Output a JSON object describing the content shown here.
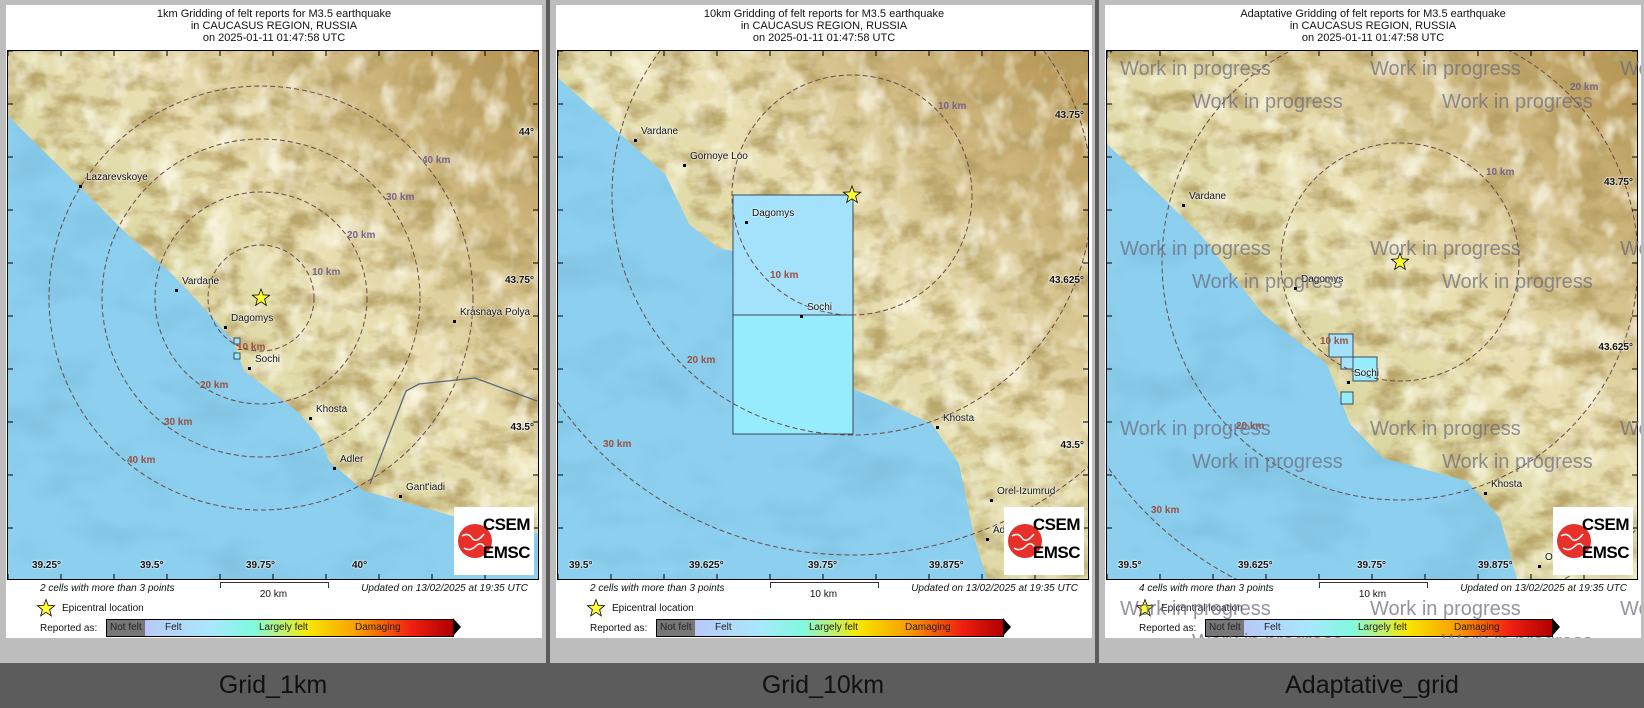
{
  "panels": [
    {
      "title_lines": [
        "1km Gridding of felt reports for M3.5 earthquake",
        "in CAUCASUS REGION, RUSSIA",
        "on  2025-01-11 01:47:58 UTC"
      ],
      "caption": "Grid_1km",
      "cells_note": "2 cells with more than 3 points",
      "scale_label": "20 km",
      "updated": "Updated on 13/02/2025 at 19:35 UTC",
      "towns": [
        "Lazarevskoye",
        "Vardane",
        "Dagomys",
        "Sochi",
        "Khosta",
        "Krasnaya Polya",
        "Adler",
        "Gant'iadi"
      ],
      "ring_labels": [
        "10 km",
        "20 km",
        "30 km",
        "40 km",
        "10 km",
        "20 km",
        "30 km",
        "40 km"
      ],
      "lon_ticks": [
        "39.25°",
        "39.5°",
        "39.75°",
        "40°"
      ],
      "lat_ticks": [
        "44°",
        "43.75°",
        "43.5°"
      ],
      "watermark": ""
    },
    {
      "title_lines": [
        "10km Gridding of felt reports for M3.5 earthquake",
        "in CAUCASUS REGION, RUSSIA",
        "on  2025-01-11 01:47:58 UTC"
      ],
      "caption": "Grid_10km",
      "cells_note": "2 cells with more than 3 points",
      "scale_label": "10 km",
      "updated": "Updated on 13/02/2025 at 19:35 UTC",
      "towns": [
        "Vardane",
        "Gornoye Loo",
        "Dagomys",
        "Sochi",
        "Khosta",
        "Orel-Izumrud",
        "Adler"
      ],
      "ring_labels": [
        "10 km",
        "10 km",
        "20 km",
        "30 km"
      ],
      "lon_ticks": [
        "39.5°",
        "39.625°",
        "39.75°",
        "39.875°"
      ],
      "lat_ticks": [
        "43.75°",
        "43.625°",
        "43.5°"
      ],
      "watermark": ""
    },
    {
      "title_lines": [
        "Adaptative Gridding of felt reports for M3.5 earthquake",
        "in CAUCASUS REGION, RUSSIA",
        "on  2025-01-11 01:47:58 UTC"
      ],
      "caption": "Adaptative_grid",
      "cells_note": "4 cells with more than 3 points",
      "scale_label": "10 km",
      "updated": "Updated on 13/02/2025 at 19:35 UTC",
      "towns": [
        "Vardane",
        "Dagomys",
        "Sochi",
        "Khosta",
        "O"
      ],
      "ring_labels": [
        "10 km",
        "20 km",
        "10 km",
        "20 km",
        "30 km"
      ],
      "lon_ticks": [
        "39.5°",
        "39.625°",
        "39.75°",
        "39.875°"
      ],
      "lat_ticks": [
        "43.75°",
        "43.625°",
        "43.5°"
      ],
      "watermark": "Work in progress"
    }
  ],
  "legend": {
    "epicentral": "Epicentral location",
    "reported_as": "Reported as:",
    "categories": [
      "Not felt",
      "Felt",
      "Largely felt",
      "Damaging"
    ]
  },
  "logo": {
    "top": "CSEM",
    "bottom": "EMSC"
  },
  "colors": {
    "sea": "#8ccfee",
    "star": "#ffff33",
    "ring": "#6a4a4a",
    "cell_light": "#a4e2fb",
    "cell_cyan": "#96ecfc",
    "logo_red": "#e8302a"
  }
}
